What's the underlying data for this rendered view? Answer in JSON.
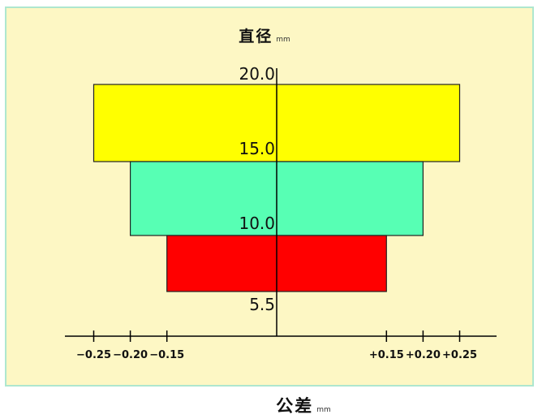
{
  "chart_data": {
    "type": "bar",
    "title": "",
    "ylabel": "直径",
    "ylabel_unit": "mm",
    "xlabel": "公差",
    "xlabel_unit": "mm",
    "tiers": [
      {
        "diameter_from": 15.0,
        "diameter_to": 20.0,
        "tolerance_minus": -0.25,
        "tolerance_plus": 0.25,
        "color": "#ffff00"
      },
      {
        "diameter_from": 10.0,
        "diameter_to": 15.0,
        "tolerance_minus": -0.2,
        "tolerance_plus": 0.2,
        "color": "#57ffb4"
      },
      {
        "diameter_from": 5.5,
        "diameter_to": 10.0,
        "tolerance_minus": -0.15,
        "tolerance_plus": 0.15,
        "color": "#ff0000"
      }
    ],
    "y_ticks": [
      "20.0",
      "15.0",
      "10.0",
      "5.5"
    ],
    "x_tick_values": [
      -0.25,
      -0.2,
      -0.15,
      0.15,
      0.2,
      0.25
    ],
    "x_tick_labels": [
      "−0.25",
      "−0.20",
      "−0.15",
      "+0.15",
      "+0.20",
      "+0.25"
    ],
    "xlim": [
      -0.3,
      0.3
    ],
    "grid": false,
    "legend": "none"
  },
  "colors": {
    "background": "#fdf7c4",
    "border": "#aee7cf",
    "axis": "#000000"
  }
}
